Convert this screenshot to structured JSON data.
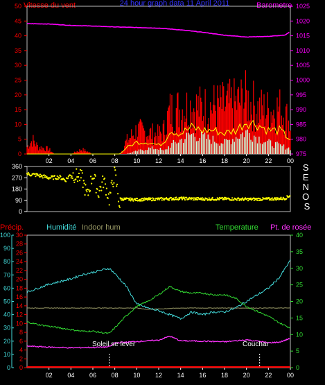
{
  "colors": {
    "background": "#000000",
    "wind_speed": "#ff0000",
    "wind_avg": "#ffff00",
    "wind_gust_fill": "#ccffdd",
    "barometer": "#ff00ff",
    "wind_dir": "#ffff00",
    "humidity": "#44dddd",
    "indoor_hum": "#999966",
    "temperature": "#33dd33",
    "dew_point": "#ff33ff",
    "precip": "#ff0000",
    "frame": "#bbbbbb"
  },
  "header": {
    "wind_title": "Vitesse du vent",
    "period_title": "24 hour graph data  11 April 2011",
    "baro_title": "Barometre"
  },
  "direction_axis_title": "S E N O S",
  "legend": {
    "precip": "Précip.",
    "humidity": "Humidité",
    "indoor_hum": "Indoor hum",
    "temperature": "Temperature",
    "dew_point": "Pt. de rosée"
  },
  "sun": {
    "sunrise_label": "Soleil se lever",
    "sunset_label": "Couchar"
  },
  "chart_data": [
    {
      "type": "area",
      "name": "wind-barometer",
      "x_hours": [
        0,
        24
      ],
      "x_tick_labels": [
        "02",
        "04",
        "06",
        "08",
        "10",
        "12",
        "14",
        "16",
        "18",
        "20",
        "22",
        "00"
      ],
      "left_axis": {
        "ylim": [
          0,
          50
        ],
        "ticks": [
          0,
          5,
          10,
          15,
          20,
          25,
          30,
          35,
          40,
          45,
          50
        ]
      },
      "right_axis": {
        "ylim": [
          975,
          1025
        ],
        "ticks": [
          975,
          980,
          985,
          990,
          995,
          1000,
          1005,
          1010,
          1015,
          1020,
          1025
        ]
      },
      "wind_speed_env": {
        "x": [
          0,
          0.5,
          1,
          2,
          2.5,
          3,
          4,
          5,
          6,
          7,
          8,
          8.5,
          9,
          10,
          11,
          12,
          12.5,
          13,
          14,
          15,
          16,
          17,
          18,
          19,
          20,
          21,
          22,
          23,
          23.5,
          24
        ],
        "y": [
          3,
          6,
          3,
          2,
          0,
          0,
          0,
          2,
          0,
          0,
          0,
          0,
          5,
          10,
          9,
          8,
          10,
          18,
          19,
          20,
          19,
          20,
          20,
          21,
          23,
          19,
          18,
          19,
          17,
          12
        ]
      },
      "wind_avg": {
        "x": [
          0,
          8.5,
          9,
          10,
          11,
          12,
          12.5,
          13,
          14,
          15,
          16,
          17,
          18,
          19,
          20,
          21,
          22,
          23,
          24
        ],
        "y": [
          0,
          0,
          2,
          4,
          4,
          3,
          4,
          8,
          7,
          9,
          8,
          8,
          7,
          8,
          11,
          10,
          8,
          8,
          5
        ]
      },
      "wind_gust_fill": {
        "x": [
          0,
          9,
          10,
          11,
          12,
          12.5,
          13,
          14,
          15,
          16,
          17,
          18,
          19,
          20,
          21,
          22,
          23,
          24
        ],
        "y": [
          0,
          0,
          1,
          2,
          2,
          1,
          3,
          5,
          7,
          6,
          5,
          4,
          6,
          8,
          6,
          4,
          3,
          2
        ]
      },
      "barometer": {
        "x": [
          0,
          2,
          4,
          6,
          8,
          10,
          12,
          14,
          16,
          18,
          20,
          22,
          23.5,
          24
        ],
        "y": [
          1019.1,
          1019,
          1018.5,
          1018.3,
          1018,
          1017.8,
          1017.6,
          1017,
          1016.2,
          1015.2,
          1014.6,
          1014.8,
          1015.2,
          1016.5
        ]
      }
    },
    {
      "type": "scatter",
      "name": "wind-direction",
      "x_hours": [
        0,
        24
      ],
      "ylim": [
        0,
        360
      ],
      "ticks": [
        0,
        90,
        180,
        270,
        360
      ],
      "segments": [
        {
          "x": [
            0,
            1,
            2,
            3,
            3.5,
            4,
            5,
            5.5,
            6,
            6.5,
            7,
            7.5,
            8,
            8.5
          ],
          "y": [
            300,
            290,
            270,
            275,
            250,
            300,
            270,
            120,
            300,
            150,
            250,
            100,
            310,
            20
          ]
        },
        {
          "x": [
            8.5,
            10,
            12,
            14,
            16,
            18,
            20,
            22,
            23.5,
            24
          ],
          "y": [
            100,
            95,
            100,
            105,
            100,
            102,
            98,
            100,
            105,
            130
          ]
        }
      ]
    },
    {
      "type": "line",
      "name": "humidity-temperature",
      "x_hours": [
        0,
        24
      ],
      "axes": {
        "humidity": {
          "ylim": [
            0,
            100
          ],
          "ticks": [
            0,
            10,
            20,
            30,
            40,
            50,
            60,
            70,
            80,
            90,
            100
          ]
        },
        "precip": {
          "ylim": [
            0,
            30
          ],
          "ticks": [
            0,
            2,
            4,
            6,
            8,
            10,
            12,
            14,
            16,
            18,
            20,
            22,
            24,
            26,
            28,
            30
          ]
        },
        "temperature": {
          "ylim": [
            0,
            40
          ],
          "ticks": [
            0,
            5,
            10,
            15,
            20,
            25,
            30,
            35,
            40
          ]
        }
      },
      "humidity": {
        "x": [
          0,
          1,
          2,
          3,
          4,
          5,
          6,
          7,
          7.5,
          8,
          9,
          10,
          11,
          12,
          13,
          14,
          15,
          16,
          17,
          18,
          19,
          20,
          21,
          22,
          23,
          24
        ],
        "y": [
          57,
          60,
          63,
          65,
          67,
          70,
          72,
          74,
          75,
          71,
          62,
          48,
          45,
          43,
          40,
          37,
          42,
          40,
          42,
          42,
          45,
          50,
          55,
          60,
          68,
          81
        ]
      },
      "indoor_hum": {
        "x": [
          0,
          9,
          10,
          11,
          14,
          18,
          21,
          22,
          24
        ],
        "y": [
          45,
          45,
          45,
          44,
          45,
          45,
          45,
          45,
          45
        ]
      },
      "temperature": {
        "x": [
          0,
          1,
          2,
          3,
          4,
          5,
          6,
          7,
          7.5,
          8,
          9,
          10,
          11,
          12,
          13,
          14,
          15,
          16,
          17,
          18,
          19,
          20,
          21,
          22,
          23,
          24
        ],
        "y": [
          13.8,
          13,
          12.5,
          12,
          11.5,
          11,
          11,
          10.5,
          10.3,
          12,
          15.5,
          18.5,
          20,
          22,
          24.5,
          23,
          22.5,
          22.5,
          22,
          22,
          21,
          18.5,
          17,
          15.5,
          13.5,
          12
        ]
      },
      "dew_point": {
        "x": [
          0,
          2,
          4,
          6,
          7.5,
          8,
          10,
          12,
          13,
          14,
          16,
          18,
          20,
          21,
          22,
          23,
          24
        ],
        "y": [
          6.5,
          6.2,
          6.0,
          6.1,
          6.3,
          7.5,
          7.9,
          8.3,
          9.5,
          8.1,
          8.0,
          7.8,
          8.4,
          8.0,
          7.5,
          7.7,
          8.8
        ]
      },
      "precip": {
        "x": [
          0,
          24
        ],
        "y": [
          0,
          0
        ]
      },
      "sunrise_hour": 7.5,
      "sunset_hour": 21.2
    }
  ]
}
